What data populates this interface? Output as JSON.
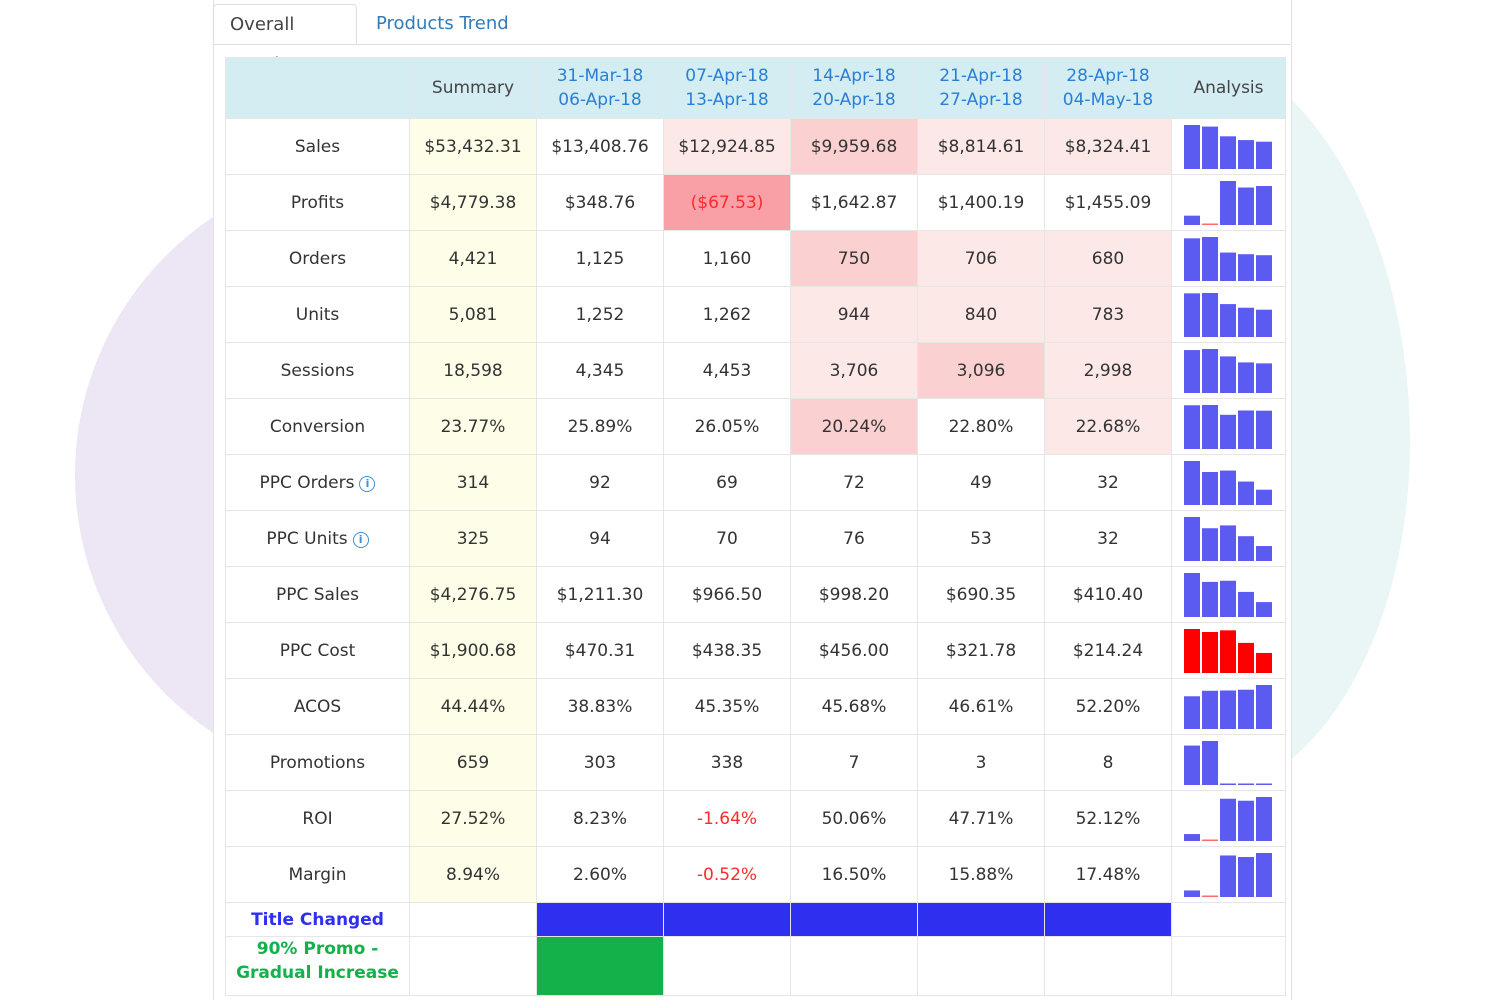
{
  "tabs": [
    {
      "label": "Overall Trend",
      "active": true
    },
    {
      "label": "Products Trend",
      "active": false
    }
  ],
  "columns": {
    "summary": "Summary",
    "analysis": "Analysis",
    "weeks": [
      {
        "start": "31-Mar-18",
        "end": "06-Apr-18"
      },
      {
        "start": "07-Apr-18",
        "end": "13-Apr-18"
      },
      {
        "start": "14-Apr-18",
        "end": "20-Apr-18"
      },
      {
        "start": "21-Apr-18",
        "end": "27-Apr-18"
      },
      {
        "start": "28-Apr-18",
        "end": "04-May-18"
      }
    ]
  },
  "colors": {
    "bar_normal": "#5b5bf2",
    "bar_alert": "#ff0000",
    "negative_bar": "#ff6b6b",
    "negative_text": "#ff2b2b",
    "cell_light": "#fde8e8",
    "cell_medium": "#fbd0d0",
    "cell_strong": "#f9a0a6",
    "event_blue": "#2f2ff0",
    "event_green": "#14b04a"
  },
  "rows": [
    {
      "label": "Sales",
      "info": false,
      "summary": "$53,432.31",
      "values": [
        "$13,408.76",
        "$12,924.85",
        "$9,959.68",
        "$8,814.61",
        "$8,324.41"
      ],
      "shades": [
        "none",
        "light",
        "medium",
        "light",
        "light"
      ],
      "neg": [
        false,
        false,
        false,
        false,
        false
      ],
      "spark": [
        13408.76,
        12924.85,
        9959.68,
        8814.61,
        8324.41
      ],
      "spark_alert": false
    },
    {
      "label": "Profits",
      "info": false,
      "summary": "$4,779.38",
      "values": [
        "$348.76",
        "($67.53)",
        "$1,642.87",
        "$1,400.19",
        "$1,455.09"
      ],
      "shades": [
        "none",
        "strong",
        "none",
        "none",
        "none"
      ],
      "neg": [
        false,
        true,
        false,
        false,
        false
      ],
      "spark": [
        348.76,
        -67.53,
        1642.87,
        1400.19,
        1455.09
      ],
      "spark_alert": false
    },
    {
      "label": "Orders",
      "info": false,
      "summary": "4,421",
      "values": [
        "1,125",
        "1,160",
        "750",
        "706",
        "680"
      ],
      "shades": [
        "none",
        "none",
        "medium",
        "light",
        "light"
      ],
      "neg": [
        false,
        false,
        false,
        false,
        false
      ],
      "spark": [
        1125,
        1160,
        750,
        706,
        680
      ],
      "spark_alert": false
    },
    {
      "label": "Units",
      "info": false,
      "summary": "5,081",
      "values": [
        "1,252",
        "1,262",
        "944",
        "840",
        "783"
      ],
      "shades": [
        "none",
        "none",
        "light",
        "light",
        "light"
      ],
      "neg": [
        false,
        false,
        false,
        false,
        false
      ],
      "spark": [
        1252,
        1262,
        944,
        840,
        783
      ],
      "spark_alert": false
    },
    {
      "label": "Sessions",
      "info": false,
      "summary": "18,598",
      "values": [
        "4,345",
        "4,453",
        "3,706",
        "3,096",
        "2,998"
      ],
      "shades": [
        "none",
        "none",
        "light",
        "medium",
        "light"
      ],
      "neg": [
        false,
        false,
        false,
        false,
        false
      ],
      "spark": [
        4345,
        4453,
        3706,
        3096,
        2998
      ],
      "spark_alert": false
    },
    {
      "label": "Conversion",
      "info": false,
      "summary": "23.77%",
      "values": [
        "25.89%",
        "26.05%",
        "20.24%",
        "22.80%",
        "22.68%"
      ],
      "shades": [
        "none",
        "none",
        "medium",
        "none",
        "light"
      ],
      "neg": [
        false,
        false,
        false,
        false,
        false
      ],
      "spark": [
        25.89,
        26.05,
        20.24,
        22.8,
        22.68
      ],
      "spark_alert": false
    },
    {
      "label": "PPC Orders",
      "info": true,
      "summary": "314",
      "values": [
        "92",
        "69",
        "72",
        "49",
        "32"
      ],
      "shades": [
        "none",
        "none",
        "none",
        "none",
        "none"
      ],
      "neg": [
        false,
        false,
        false,
        false,
        false
      ],
      "spark": [
        92,
        69,
        72,
        49,
        32
      ],
      "spark_alert": false
    },
    {
      "label": "PPC Units",
      "info": true,
      "summary": "325",
      "values": [
        "94",
        "70",
        "76",
        "53",
        "32"
      ],
      "shades": [
        "none",
        "none",
        "none",
        "none",
        "none"
      ],
      "neg": [
        false,
        false,
        false,
        false,
        false
      ],
      "spark": [
        94,
        70,
        76,
        53,
        32
      ],
      "spark_alert": false
    },
    {
      "label": "PPC Sales",
      "info": false,
      "summary": "$4,276.75",
      "values": [
        "$1,211.30",
        "$966.50",
        "$998.20",
        "$690.35",
        "$410.40"
      ],
      "shades": [
        "none",
        "none",
        "none",
        "none",
        "none"
      ],
      "neg": [
        false,
        false,
        false,
        false,
        false
      ],
      "spark": [
        1211.3,
        966.5,
        998.2,
        690.35,
        410.4
      ],
      "spark_alert": false
    },
    {
      "label": "PPC Cost",
      "info": false,
      "summary": "$1,900.68",
      "values": [
        "$470.31",
        "$438.35",
        "$456.00",
        "$321.78",
        "$214.24"
      ],
      "shades": [
        "none",
        "none",
        "none",
        "none",
        "none"
      ],
      "neg": [
        false,
        false,
        false,
        false,
        false
      ],
      "spark": [
        470.31,
        438.35,
        456.0,
        321.78,
        214.24
      ],
      "spark_alert": true
    },
    {
      "label": "ACOS",
      "info": false,
      "summary": "44.44%",
      "values": [
        "38.83%",
        "45.35%",
        "45.68%",
        "46.61%",
        "52.20%"
      ],
      "shades": [
        "none",
        "none",
        "none",
        "none",
        "none"
      ],
      "neg": [
        false,
        false,
        false,
        false,
        false
      ],
      "spark": [
        38.83,
        45.35,
        45.68,
        46.61,
        52.2
      ],
      "spark_alert": false
    },
    {
      "label": "Promotions",
      "info": false,
      "summary": "659",
      "values": [
        "303",
        "338",
        "7",
        "3",
        "8"
      ],
      "shades": [
        "none",
        "none",
        "none",
        "none",
        "none"
      ],
      "neg": [
        false,
        false,
        false,
        false,
        false
      ],
      "spark": [
        303,
        338,
        7,
        3,
        8
      ],
      "spark_alert": false
    },
    {
      "label": "ROI",
      "info": false,
      "summary": "27.52%",
      "values": [
        "8.23%",
        "-1.64%",
        "50.06%",
        "47.71%",
        "52.12%"
      ],
      "shades": [
        "none",
        "none",
        "none",
        "none",
        "none"
      ],
      "neg": [
        false,
        true,
        false,
        false,
        false
      ],
      "spark": [
        8.23,
        -1.64,
        50.06,
        47.71,
        52.12
      ],
      "spark_alert": false
    },
    {
      "label": "Margin",
      "info": false,
      "summary": "8.94%",
      "values": [
        "2.60%",
        "-0.52%",
        "16.50%",
        "15.88%",
        "17.48%"
      ],
      "shades": [
        "none",
        "none",
        "none",
        "none",
        "none"
      ],
      "neg": [
        false,
        true,
        false,
        false,
        false
      ],
      "spark": [
        2.6,
        -0.52,
        16.5,
        15.88,
        17.48
      ],
      "spark_alert": false
    }
  ],
  "events": [
    {
      "label": "Title Changed",
      "label_color": "#2f2ff0",
      "weeks": [
        true,
        true,
        true,
        true,
        true
      ],
      "bar_color": "#2f2ff0"
    },
    {
      "label_lines": [
        "90% Promo -",
        "Gradual Increase"
      ],
      "label_color": "#14b04a",
      "weeks": [
        true,
        false,
        false,
        false,
        false
      ],
      "bar_color": "#14b04a"
    }
  ]
}
